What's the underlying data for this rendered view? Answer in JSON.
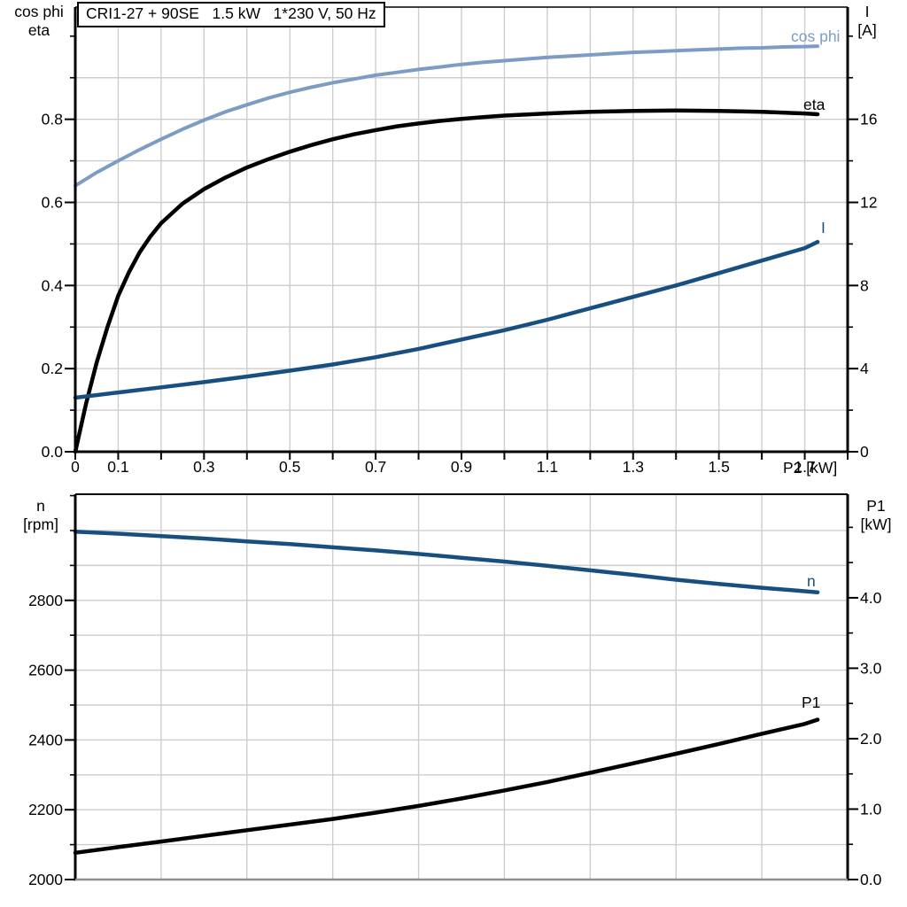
{
  "title": "CRI1-27 + 90SE   1.5 kW   1*230 V, 50 Hz",
  "colors": {
    "light_blue": "#7d9cc4",
    "dark_blue": "#174f80",
    "black": "#000000",
    "grid": "#cdcdcd",
    "axis": "#000000",
    "bottom_axis_gray": "#8f8f8f"
  },
  "chart_data": [
    {
      "type": "line",
      "title": "CRI1-27 + 90SE   1.5 kW   1*230 V, 50 Hz",
      "x": {
        "unit_label": "P2 [kW]",
        "min": 0,
        "max": 1.8,
        "grid_step": 0.1,
        "tick_step": 0.1,
        "labels": [
          [
            0,
            "0"
          ],
          [
            0.1,
            "0.1"
          ],
          [
            0.3,
            "0.3"
          ],
          [
            0.5,
            "0.5"
          ],
          [
            0.7,
            "0.7"
          ],
          [
            0.9,
            "0.9"
          ],
          [
            1.1,
            "1.1"
          ],
          [
            1.3,
            "1.3"
          ],
          [
            1.5,
            "1.5"
          ],
          [
            1.7,
            "1.7"
          ]
        ]
      },
      "left": {
        "title1": "cos phi",
        "title2": "eta",
        "min": 0,
        "max": 1.07,
        "grid_step": 0.1,
        "grid_max": 0.95,
        "minor_step": 0.1,
        "labels": [
          [
            0,
            "0.0"
          ],
          [
            0.2,
            "0.2"
          ],
          [
            0.4,
            "0.4"
          ],
          [
            0.6,
            "0.6"
          ],
          [
            0.8,
            "0.8"
          ]
        ]
      },
      "right": {
        "title1": "I",
        "title2": "[A]",
        "min": 0,
        "max": 21.4,
        "minor_step": 2,
        "labels": [
          [
            0,
            "0"
          ],
          [
            4,
            "4"
          ],
          [
            8,
            "8"
          ],
          [
            12,
            "12"
          ],
          [
            16,
            "16"
          ]
        ]
      },
      "series": [
        {
          "name": "cos phi",
          "axis": "left",
          "color_key": "light_blue",
          "points": [
            [
              0,
              0.64
            ],
            [
              0.05,
              0.672
            ],
            [
              0.1,
              0.7
            ],
            [
              0.15,
              0.727
            ],
            [
              0.2,
              0.752
            ],
            [
              0.25,
              0.776
            ],
            [
              0.3,
              0.798
            ],
            [
              0.35,
              0.818
            ],
            [
              0.4,
              0.835
            ],
            [
              0.45,
              0.851
            ],
            [
              0.5,
              0.865
            ],
            [
              0.55,
              0.877
            ],
            [
              0.6,
              0.888
            ],
            [
              0.65,
              0.897
            ],
            [
              0.7,
              0.906
            ],
            [
              0.75,
              0.913
            ],
            [
              0.8,
              0.92
            ],
            [
              0.85,
              0.926
            ],
            [
              0.9,
              0.932
            ],
            [
              0.95,
              0.937
            ],
            [
              1,
              0.941
            ],
            [
              1.05,
              0.945
            ],
            [
              1.1,
              0.949
            ],
            [
              1.15,
              0.952
            ],
            [
              1.2,
              0.955
            ],
            [
              1.25,
              0.958
            ],
            [
              1.3,
              0.961
            ],
            [
              1.35,
              0.963
            ],
            [
              1.4,
              0.965
            ],
            [
              1.45,
              0.967
            ],
            [
              1.5,
              0.969
            ],
            [
              1.55,
              0.971
            ],
            [
              1.6,
              0.972
            ],
            [
              1.65,
              0.974
            ],
            [
              1.7,
              0.975
            ],
            [
              1.73,
              0.976
            ]
          ]
        },
        {
          "name": "eta",
          "axis": "left",
          "color_key": "black",
          "points": [
            [
              0,
              0
            ],
            [
              0.025,
              0.115
            ],
            [
              0.05,
              0.215
            ],
            [
              0.075,
              0.3
            ],
            [
              0.1,
              0.375
            ],
            [
              0.125,
              0.432
            ],
            [
              0.15,
              0.48
            ],
            [
              0.175,
              0.518
            ],
            [
              0.2,
              0.55
            ],
            [
              0.25,
              0.597
            ],
            [
              0.3,
              0.632
            ],
            [
              0.35,
              0.66
            ],
            [
              0.4,
              0.684
            ],
            [
              0.45,
              0.704
            ],
            [
              0.5,
              0.722
            ],
            [
              0.55,
              0.738
            ],
            [
              0.6,
              0.752
            ],
            [
              0.65,
              0.764
            ],
            [
              0.7,
              0.774
            ],
            [
              0.75,
              0.783
            ],
            [
              0.8,
              0.79
            ],
            [
              0.85,
              0.796
            ],
            [
              0.9,
              0.801
            ],
            [
              0.95,
              0.805
            ],
            [
              1,
              0.809
            ],
            [
              1.1,
              0.814
            ],
            [
              1.2,
              0.818
            ],
            [
              1.3,
              0.82
            ],
            [
              1.4,
              0.821
            ],
            [
              1.5,
              0.82
            ],
            [
              1.6,
              0.818
            ],
            [
              1.7,
              0.814
            ],
            [
              1.73,
              0.812
            ]
          ]
        },
        {
          "name": "I",
          "axis": "right",
          "color_key": "dark_blue",
          "points": [
            [
              0,
              2.6
            ],
            [
              0.1,
              2.85
            ],
            [
              0.2,
              3.1
            ],
            [
              0.3,
              3.35
            ],
            [
              0.4,
              3.62
            ],
            [
              0.5,
              3.9
            ],
            [
              0.6,
              4.2
            ],
            [
              0.7,
              4.55
            ],
            [
              0.8,
              4.95
            ],
            [
              0.9,
              5.4
            ],
            [
              1,
              5.85
            ],
            [
              1.1,
              6.35
            ],
            [
              1.2,
              6.9
            ],
            [
              1.3,
              7.45
            ],
            [
              1.4,
              8.0
            ],
            [
              1.5,
              8.6
            ],
            [
              1.6,
              9.2
            ],
            [
              1.7,
              9.8
            ],
            [
              1.73,
              10.1
            ]
          ]
        }
      ]
    },
    {
      "type": "line",
      "x": {
        "unit_label": "",
        "min": 0,
        "max": 1.8,
        "grid_step": 0.2,
        "tick_step": 0,
        "labels": []
      },
      "left": {
        "title1": "n",
        "title2": "[rpm]",
        "min": 2000,
        "max": 3104,
        "grid_step": 100,
        "grid_max": 3050,
        "minor_step": 100,
        "labels": [
          [
            2000,
            "2000"
          ],
          [
            2200,
            "2200"
          ],
          [
            2400,
            "2400"
          ],
          [
            2600,
            "2600"
          ],
          [
            2800,
            "2800"
          ]
        ]
      },
      "right": {
        "title1": "P1",
        "title2": "[kW]",
        "min": 0,
        "max": 5.47,
        "minor_step": 0.5,
        "labels": [
          [
            0,
            "0.0"
          ],
          [
            1,
            "1.0"
          ],
          [
            2,
            "2.0"
          ],
          [
            3,
            "3.0"
          ],
          [
            4,
            "4.0"
          ]
        ]
      },
      "series": [
        {
          "name": "n",
          "axis": "left",
          "color_key": "dark_blue",
          "points": [
            [
              0,
              2997
            ],
            [
              0.1,
              2991
            ],
            [
              0.2,
              2984
            ],
            [
              0.3,
              2977
            ],
            [
              0.4,
              2969
            ],
            [
              0.5,
              2961
            ],
            [
              0.6,
              2952
            ],
            [
              0.7,
              2943
            ],
            [
              0.8,
              2933
            ],
            [
              0.9,
              2922
            ],
            [
              1,
              2911
            ],
            [
              1.1,
              2899
            ],
            [
              1.2,
              2886
            ],
            [
              1.3,
              2873
            ],
            [
              1.4,
              2859
            ],
            [
              1.5,
              2847
            ],
            [
              1.6,
              2836
            ],
            [
              1.7,
              2826
            ],
            [
              1.73,
              2823
            ]
          ]
        },
        {
          "name": "P1",
          "axis": "right",
          "color_key": "black",
          "points": [
            [
              0,
              0.38
            ],
            [
              0.1,
              0.46
            ],
            [
              0.2,
              0.54
            ],
            [
              0.3,
              0.62
            ],
            [
              0.4,
              0.7
            ],
            [
              0.5,
              0.78
            ],
            [
              0.6,
              0.86
            ],
            [
              0.7,
              0.95
            ],
            [
              0.8,
              1.045
            ],
            [
              0.9,
              1.15
            ],
            [
              1,
              1.265
            ],
            [
              1.1,
              1.385
            ],
            [
              1.2,
              1.515
            ],
            [
              1.3,
              1.65
            ],
            [
              1.4,
              1.785
            ],
            [
              1.5,
              1.925
            ],
            [
              1.6,
              2.07
            ],
            [
              1.7,
              2.21
            ],
            [
              1.73,
              2.27
            ]
          ]
        }
      ]
    }
  ]
}
